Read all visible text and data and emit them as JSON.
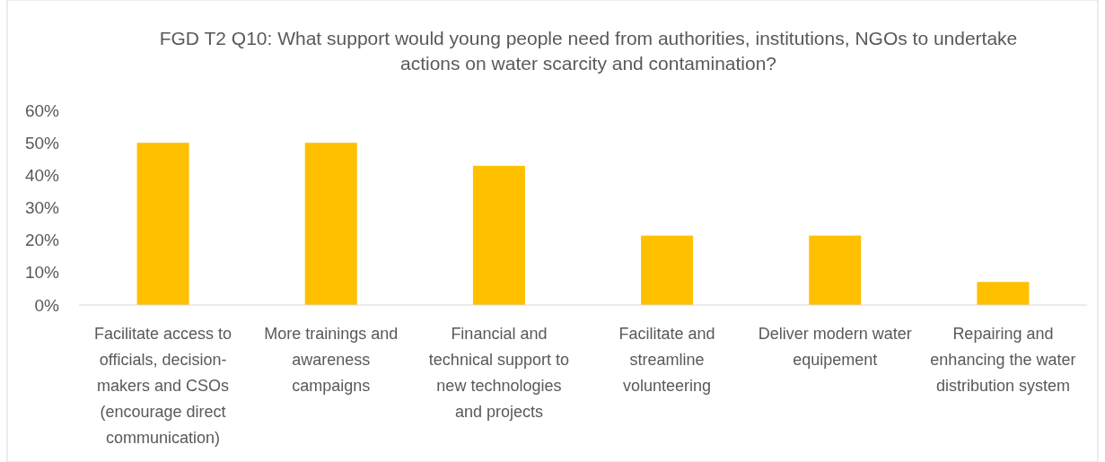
{
  "chart_data": {
    "type": "bar",
    "title": "FGD T2 Q10: What support would young people need from authorities, institutions, NGOs to undertake actions on water scarcity and contamination?",
    "categories": [
      "Facilitate access to officials, decision-makers and CSOs (encourage direct communication)",
      "More trainings and awareness campaigns",
      "Financial and technical support to new technologies and projects",
      "Facilitate and streamline volunteering",
      "Deliver modern water equipement",
      "Repairing and enhancing the water distribution system"
    ],
    "values": [
      50,
      50,
      42.9,
      21.4,
      21.4,
      7.1
    ],
    "color": "#ffc000",
    "ylim": [
      0,
      60
    ],
    "yticks": [
      {
        "value": 0,
        "label": "0%"
      },
      {
        "value": 10,
        "label": "10%"
      },
      {
        "value": 20,
        "label": "20%"
      },
      {
        "value": 30,
        "label": "30%"
      },
      {
        "value": 40,
        "label": "40%"
      },
      {
        "value": 50,
        "label": "50%"
      },
      {
        "value": 60,
        "label": "60%"
      }
    ],
    "grid": false
  }
}
